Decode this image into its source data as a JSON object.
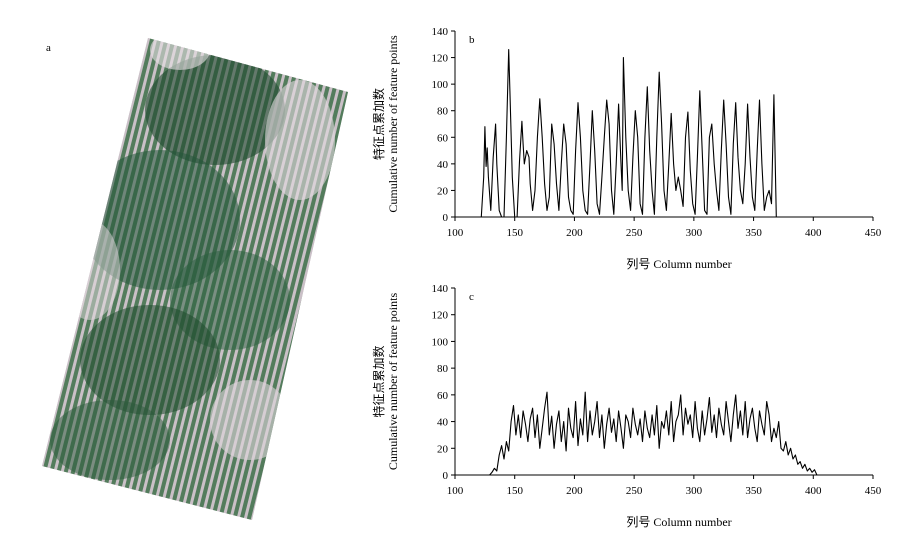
{
  "panels": {
    "a": {
      "label": "a"
    }
  },
  "colors": {
    "line": "#000000",
    "vegetation_dark": "#1f4a2e",
    "vegetation_mid": "#3f7a4c",
    "soil_light": "#d8cfd3"
  },
  "chart_data": [
    {
      "type": "line",
      "panel_label": "b",
      "ylabel_cn": "特征点累加数",
      "ylabel_en": "Cumulative number of feature points",
      "xlabel": "列号 Column number",
      "xlim": [
        100,
        450
      ],
      "ylim": [
        0,
        140
      ],
      "x_ticks": [
        100,
        150,
        200,
        250,
        300,
        350,
        400,
        450
      ],
      "y_ticks": [
        0,
        20,
        40,
        60,
        80,
        100,
        120,
        140
      ],
      "grid": false,
      "series": [
        {
          "x": [
            122,
            124,
            125,
            126,
            127,
            128,
            130,
            132,
            134,
            135,
            137,
            139,
            141,
            143,
            145,
            146,
            148,
            150,
            152,
            154,
            156,
            157,
            158,
            160,
            162,
            163,
            165,
            167,
            169,
            171,
            173,
            175,
            177,
            179,
            181,
            183,
            185,
            187,
            189,
            191,
            193,
            195,
            197,
            199,
            201,
            203,
            205,
            207,
            209,
            211,
            213,
            215,
            217,
            219,
            221,
            223,
            225,
            227,
            229,
            231,
            233,
            235,
            237,
            239,
            240,
            241,
            243,
            245,
            247,
            249,
            251,
            253,
            255,
            257,
            259,
            261,
            263,
            265,
            267,
            269,
            271,
            273,
            275,
            277,
            279,
            281,
            283,
            285,
            287,
            289,
            291,
            293,
            295,
            297,
            299,
            301,
            303,
            305,
            307,
            309,
            311,
            313,
            315,
            317,
            319,
            321,
            323,
            325,
            327,
            329,
            331,
            333,
            335,
            337,
            339,
            341,
            343,
            345,
            347,
            349,
            351,
            353,
            355,
            357,
            359,
            361,
            363,
            365,
            367,
            369
          ],
          "y": [
            0,
            30,
            68,
            38,
            52,
            30,
            5,
            45,
            70,
            40,
            5,
            0,
            0,
            60,
            126,
            95,
            30,
            0,
            0,
            42,
            72,
            55,
            40,
            50,
            45,
            25,
            5,
            20,
            60,
            89,
            60,
            25,
            5,
            15,
            70,
            55,
            25,
            5,
            40,
            70,
            55,
            15,
            5,
            2,
            50,
            86,
            60,
            20,
            5,
            2,
            40,
            80,
            50,
            10,
            2,
            30,
            60,
            88,
            70,
            20,
            2,
            40,
            85,
            40,
            20,
            120,
            60,
            20,
            5,
            45,
            80,
            60,
            10,
            2,
            60,
            98,
            50,
            20,
            2,
            60,
            109,
            70,
            20,
            5,
            40,
            78,
            40,
            20,
            30,
            20,
            8,
            60,
            79,
            35,
            10,
            2,
            45,
            95,
            50,
            5,
            2,
            60,
            70,
            40,
            20,
            5,
            50,
            88,
            55,
            15,
            2,
            55,
            86,
            45,
            20,
            10,
            40,
            85,
            45,
            15,
            5,
            50,
            88,
            40,
            5,
            15,
            20,
            10,
            92,
            0
          ]
        }
      ]
    },
    {
      "type": "line",
      "panel_label": "c",
      "ylabel_cn": "特征点累加数",
      "ylabel_en": "Cumulative number of feature points",
      "xlabel": "列号 Column number",
      "xlim": [
        100,
        450
      ],
      "ylim": [
        0,
        140
      ],
      "x_ticks": [
        100,
        150,
        200,
        250,
        300,
        350,
        400,
        450
      ],
      "y_ticks": [
        0,
        20,
        40,
        60,
        80,
        100,
        120,
        140
      ],
      "grid": false,
      "series": [
        {
          "x": [
            129,
            131,
            133,
            135,
            137,
            139,
            141,
            143,
            145,
            147,
            149,
            151,
            153,
            155,
            157,
            159,
            161,
            163,
            165,
            167,
            169,
            171,
            173,
            175,
            177,
            179,
            181,
            183,
            185,
            187,
            189,
            191,
            193,
            195,
            197,
            199,
            201,
            203,
            205,
            207,
            209,
            211,
            213,
            215,
            217,
            219,
            221,
            223,
            225,
            227,
            229,
            231,
            233,
            235,
            237,
            239,
            241,
            243,
            245,
            247,
            249,
            251,
            253,
            255,
            257,
            259,
            261,
            263,
            265,
            267,
            269,
            271,
            273,
            275,
            277,
            279,
            281,
            283,
            285,
            287,
            289,
            291,
            293,
            295,
            297,
            299,
            301,
            303,
            305,
            307,
            309,
            311,
            313,
            315,
            317,
            319,
            321,
            323,
            325,
            327,
            329,
            331,
            333,
            335,
            337,
            339,
            341,
            343,
            345,
            347,
            349,
            351,
            353,
            355,
            357,
            359,
            361,
            363,
            365,
            367,
            369,
            371,
            373,
            375,
            377,
            379,
            381,
            383,
            385,
            387,
            389,
            391,
            393,
            395,
            397,
            399,
            401,
            403
          ],
          "y": [
            0,
            2,
            5,
            3,
            15,
            22,
            12,
            25,
            18,
            40,
            52,
            30,
            45,
            28,
            48,
            38,
            25,
            42,
            50,
            28,
            45,
            20,
            35,
            50,
            62,
            30,
            44,
            20,
            38,
            48,
            25,
            40,
            18,
            50,
            35,
            28,
            55,
            22,
            42,
            30,
            62,
            25,
            48,
            30,
            40,
            55,
            28,
            45,
            20,
            38,
            50,
            32,
            42,
            25,
            48,
            35,
            20,
            45,
            40,
            28,
            50,
            38,
            30,
            42,
            25,
            48,
            35,
            28,
            45,
            30,
            52,
            20,
            40,
            35,
            48,
            30,
            55,
            25,
            40,
            45,
            60,
            30,
            50,
            38,
            45,
            28,
            55,
            35,
            25,
            48,
            30,
            42,
            58,
            32,
            45,
            28,
            50,
            38,
            30,
            55,
            40,
            25,
            45,
            60,
            35,
            48,
            30,
            55,
            28,
            42,
            50,
            35,
            25,
            48,
            38,
            30,
            55,
            45,
            25,
            35,
            28,
            40,
            20,
            18,
            25,
            15,
            20,
            12,
            15,
            8,
            10,
            5,
            8,
            3,
            5,
            2,
            4,
            0
          ]
        }
      ]
    }
  ]
}
